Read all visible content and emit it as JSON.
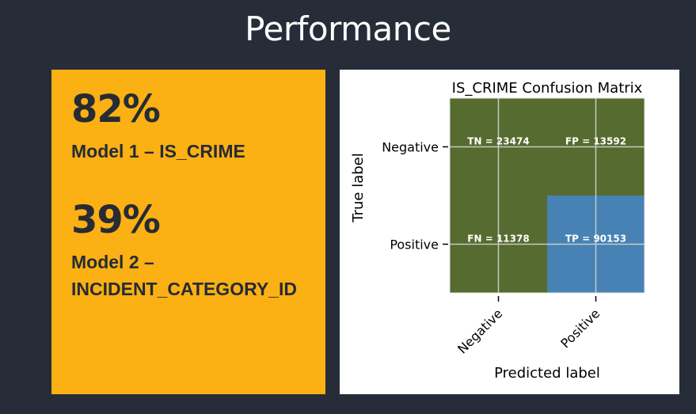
{
  "slide": {
    "title": "Performance"
  },
  "metrics": [
    {
      "value": "82%",
      "label": "Model 1 – IS_CRIME"
    },
    {
      "value": "39%",
      "label": "Model 2 –\nINCIDENT_CATEGORY_ID"
    }
  ],
  "colors": {
    "background": "#272d38",
    "panel": "#fbb013",
    "text_dark": "#262b35",
    "cell_green": "#556b2f",
    "cell_blue": "#4682b4"
  },
  "chart_data": {
    "type": "heatmap",
    "title": "IS_CRIME Confusion Matrix",
    "xlabel": "Predicted label",
    "ylabel": "True label",
    "x_categories": [
      "Negative",
      "Positive"
    ],
    "y_categories": [
      "Negative",
      "Positive"
    ],
    "cells": [
      {
        "row": 0,
        "col": 0,
        "label": "TN = 23474",
        "value": 23474,
        "color": "#556b2f"
      },
      {
        "row": 0,
        "col": 1,
        "label": "FP = 13592",
        "value": 13592,
        "color": "#556b2f"
      },
      {
        "row": 1,
        "col": 0,
        "label": "FN = 11378",
        "value": 11378,
        "color": "#556b2f"
      },
      {
        "row": 1,
        "col": 1,
        "label": "TP = 90153",
        "value": 90153,
        "color": "#4682b4"
      }
    ],
    "grid": true
  }
}
